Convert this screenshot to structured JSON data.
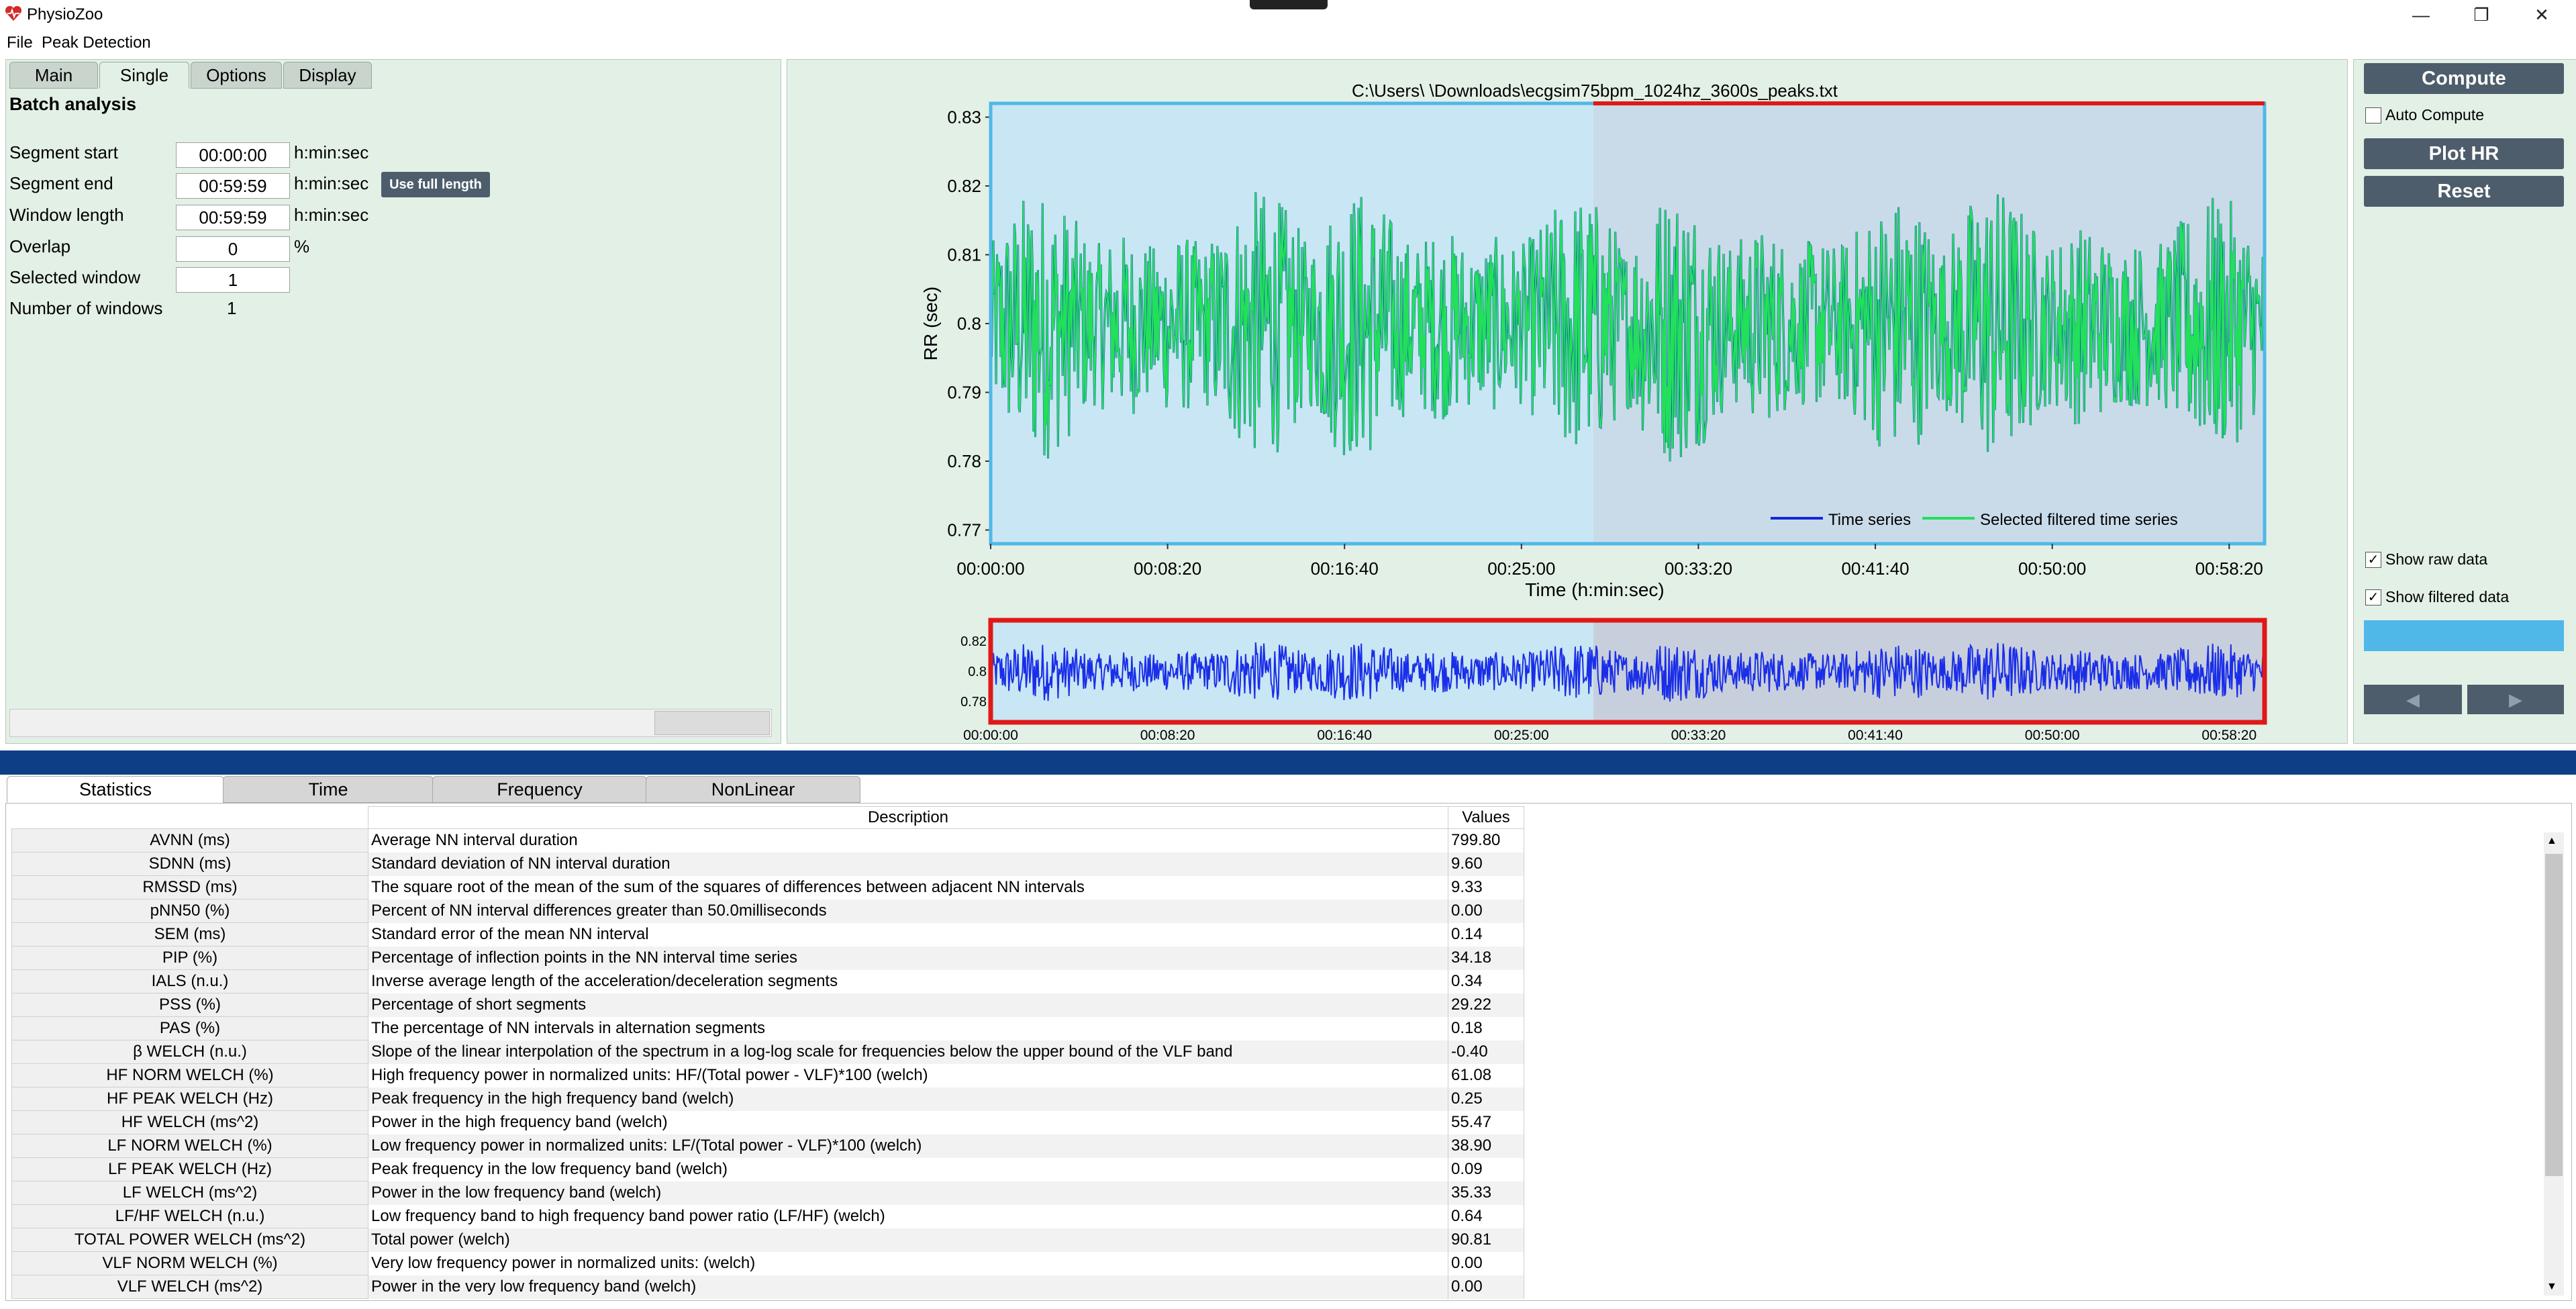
{
  "app": {
    "title": "PhysioZoo",
    "logo_icon": "heart-logo-icon"
  },
  "window_controls": {
    "minimize": "—",
    "maximize": "❐",
    "close": "✕"
  },
  "menu": [
    "File",
    "Peak Detection"
  ],
  "left_tabs": [
    "Main",
    "Single",
    "Options",
    "Display"
  ],
  "batch": {
    "title": "Batch analysis",
    "fields": [
      {
        "label": "Segment start",
        "value": "00:00:00",
        "unit": "h:min:sec"
      },
      {
        "label": "Segment end",
        "value": "00:59:59",
        "unit": "h:min:sec"
      },
      {
        "label": "Window length",
        "value": "00:59:59",
        "unit": "h:min:sec"
      },
      {
        "label": "Overlap",
        "value": "0",
        "unit": "%"
      },
      {
        "label": "Selected window",
        "value": "1",
        "unit": ""
      }
    ],
    "num_windows_label": "Number of windows",
    "num_windows_value": "1",
    "use_full_label": "Use full length"
  },
  "chart_data": [
    {
      "type": "line",
      "title": "C:\\Users\\            \\Downloads\\ecgsim75bpm_1024hz_3600s_peaks.txt",
      "xlabel": "Time (h:min:sec)",
      "ylabel": "RR (sec)",
      "ylim": [
        0.768,
        0.832
      ],
      "xlim_seconds": [
        0,
        3600
      ],
      "y_ticks": [
        "0.77",
        "0.78",
        "0.79",
        "0.8",
        "0.81",
        "0.82",
        "0.83"
      ],
      "x_ticks": [
        "00:00:00",
        "00:08:20",
        "00:16:40",
        "00:25:00",
        "00:33:20",
        "00:41:40",
        "00:50:00",
        "00:58:20"
      ],
      "legend": {
        "placement": "bottom-right",
        "entries": [
          {
            "name": "Time series",
            "color": "#1428dc"
          },
          {
            "name": "Selected filtered time series",
            "color": "#22e05a"
          }
        ]
      },
      "selection_seconds": [
        0,
        1800
      ],
      "mean": 0.7998,
      "sd": 0.0096
    },
    {
      "type": "line",
      "y_ticks": [
        "0.78",
        "0.8",
        "0.82"
      ],
      "x_ticks": [
        "00:00:00",
        "00:08:20",
        "00:16:40",
        "00:25:00",
        "00:33:20",
        "00:41:40",
        "00:50:00",
        "00:58:20"
      ],
      "ylim": [
        0.768,
        0.832
      ]
    }
  ],
  "right": {
    "compute": "Compute",
    "auto_compute": "Auto Compute",
    "plot_hr": "Plot HR",
    "reset": "Reset",
    "show_raw": "Show raw data",
    "show_filtered": "Show filtered data",
    "prev_icon": "◀",
    "next_icon": "▶",
    "accent": "#4fb8e8"
  },
  "bottom_tabs": [
    "Statistics",
    "Time",
    "Frequency",
    "NonLinear"
  ],
  "stats": {
    "headers": [
      "Description",
      "Values"
    ],
    "rows": [
      {
        "name": "AVNN (ms)",
        "desc": "Average NN interval duration",
        "value": "799.80"
      },
      {
        "name": "SDNN (ms)",
        "desc": "Standard deviation of NN interval duration",
        "value": "9.60"
      },
      {
        "name": "RMSSD (ms)",
        "desc": "The square root of the mean of the sum of the squares of differences between adjacent NN intervals",
        "value": "9.33"
      },
      {
        "name": "pNN50 (%)",
        "desc": "Percent of NN interval differences greater than 50.0milliseconds",
        "value": "0.00"
      },
      {
        "name": "SEM (ms)",
        "desc": "Standard error of the mean NN interval",
        "value": "0.14"
      },
      {
        "name": "PIP (%)",
        "desc": "Percentage of inflection points in the NN interval time series",
        "value": "34.18"
      },
      {
        "name": "IALS (n.u.)",
        "desc": "Inverse average length of the acceleration/deceleration segments",
        "value": "0.34"
      },
      {
        "name": "PSS (%)",
        "desc": "Percentage of short segments",
        "value": "29.22"
      },
      {
        "name": "PAS (%)",
        "desc": "The percentage of NN intervals in alternation segments",
        "value": "0.18"
      },
      {
        "name": "β WELCH (n.u.)",
        "desc": "Slope of the linear interpolation of the spectrum in a log-log scale for frequencies below the upper bound of the VLF band",
        "value": "-0.40"
      },
      {
        "name": "HF NORM WELCH (%)",
        "desc": "High frequency power in normalized units: HF/(Total power - VLF)*100 (welch)",
        "value": "61.08"
      },
      {
        "name": "HF PEAK WELCH (Hz)",
        "desc": "Peak frequency in the high frequency band (welch)",
        "value": "0.25"
      },
      {
        "name": "HF WELCH (ms^2)",
        "desc": "Power in the high frequency band (welch)",
        "value": "55.47"
      },
      {
        "name": "LF NORM WELCH (%)",
        "desc": "Low frequency power in normalized units: LF/(Total power - VLF)*100 (welch)",
        "value": "38.90"
      },
      {
        "name": "LF PEAK WELCH (Hz)",
        "desc": "Peak frequency in the low frequency band (welch)",
        "value": "0.09"
      },
      {
        "name": "LF WELCH (ms^2)",
        "desc": "Power in the low frequency band (welch)",
        "value": "35.33"
      },
      {
        "name": "LF/HF WELCH (n.u.)",
        "desc": "Low frequency band to high frequency band power ratio (LF/HF) (welch)",
        "value": "0.64"
      },
      {
        "name": "TOTAL POWER WELCH (ms^2)",
        "desc": "Total power (welch)",
        "value": "90.81"
      },
      {
        "name": "VLF NORM WELCH (%)",
        "desc": "Very low frequency power in normalized units: (welch)",
        "value": "0.00"
      },
      {
        "name": "VLF WELCH (ms^2)",
        "desc": "Power in the very low frequency band (welch)",
        "value": "0.00"
      }
    ]
  }
}
